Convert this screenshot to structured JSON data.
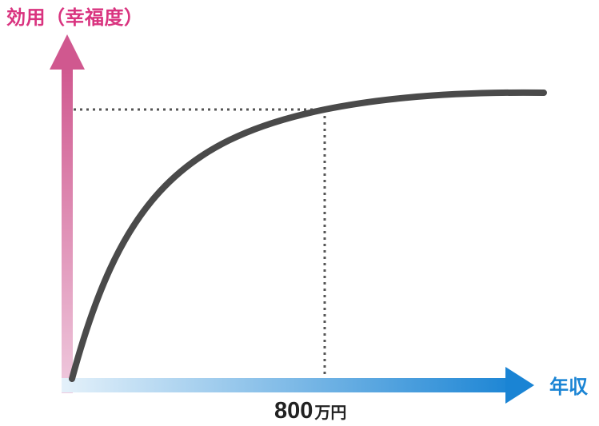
{
  "diagram": {
    "y_axis_label": "効用（幸福度）",
    "x_axis_label": "年収",
    "x_marker": {
      "number": "800",
      "unit": "万円"
    },
    "curve_type": "diminishing-returns",
    "colors": {
      "y_axis_top": "#d0588f",
      "y_axis_bottom": "#edc4d7",
      "y_label": "#d9337f",
      "x_axis_left": "#d8ecf8",
      "x_axis_right": "#1a84d4",
      "x_label": "#1a84d4",
      "curve": "#4a4a4a",
      "guides": "#555555"
    }
  }
}
